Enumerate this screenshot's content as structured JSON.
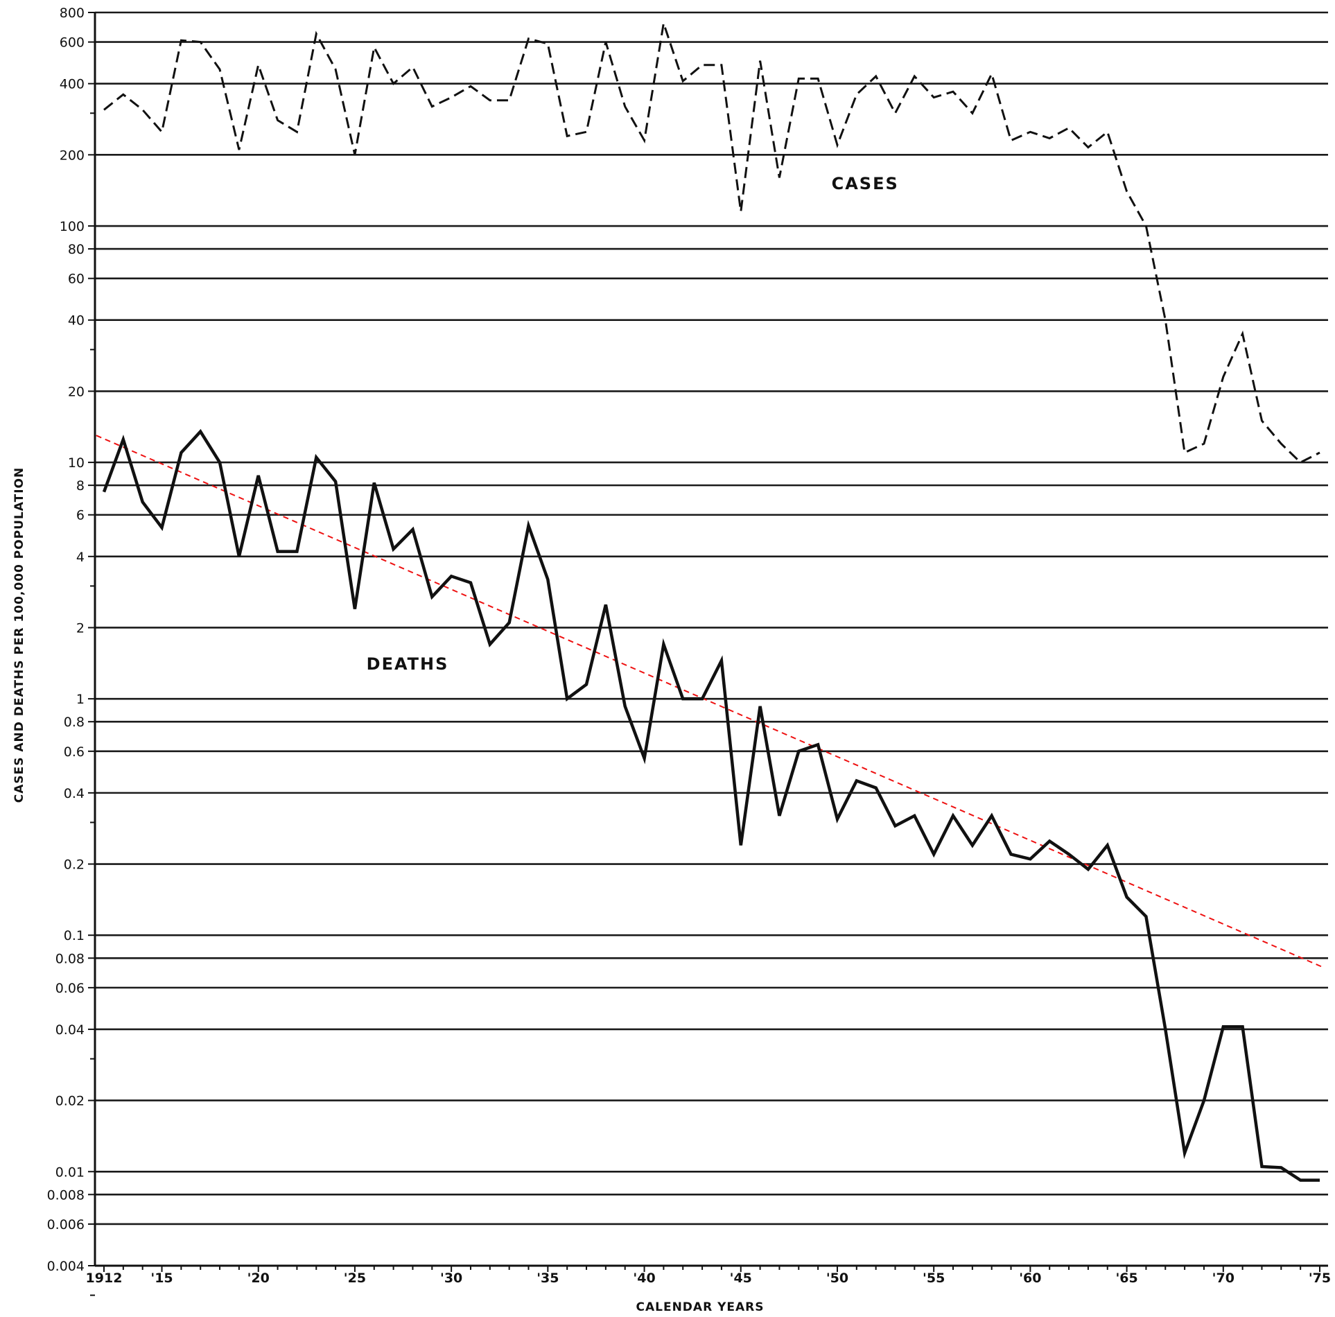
{
  "chart_data": {
    "type": "line",
    "yscale": "log",
    "ylim": [
      0.004,
      800
    ],
    "xlim": [
      1911.6,
      1975.2
    ],
    "ylabel": "CASES AND DEATHS PER 100,000 POPULATION",
    "xlabel": "CALENDAR YEARS",
    "y_ticks": [
      {
        "value": 800,
        "label": "800"
      },
      {
        "value": 600,
        "label": "600"
      },
      {
        "value": 400,
        "label": "400"
      },
      {
        "value": 200,
        "label": "200"
      },
      {
        "value": 100,
        "label": "100"
      },
      {
        "value": 80,
        "label": "80"
      },
      {
        "value": 60,
        "label": "60"
      },
      {
        "value": 40,
        "label": "40"
      },
      {
        "value": 20,
        "label": "20"
      },
      {
        "value": 10,
        "label": "10"
      },
      {
        "value": 8,
        "label": "8"
      },
      {
        "value": 6,
        "label": "6"
      },
      {
        "value": 4,
        "label": "4"
      },
      {
        "value": 2,
        "label": "2"
      },
      {
        "value": 1,
        "label": "1"
      },
      {
        "value": 0.8,
        "label": "0.8"
      },
      {
        "value": 0.6,
        "label": "0.6"
      },
      {
        "value": 0.4,
        "label": "0.4"
      },
      {
        "value": 0.2,
        "label": "0.2"
      },
      {
        "value": 0.1,
        "label": "0.1"
      },
      {
        "value": 0.08,
        "label": "0.08"
      },
      {
        "value": 0.06,
        "label": "0.06"
      },
      {
        "value": 0.04,
        "label": "0.04"
      },
      {
        "value": 0.02,
        "label": "0.02"
      },
      {
        "value": 0.01,
        "label": "0.01"
      },
      {
        "value": 0.008,
        "label": "0.008"
      },
      {
        "value": 0.006,
        "label": "0.006"
      },
      {
        "value": 0.004,
        "label": "0.004"
      }
    ],
    "minor_y_ticks": [
      300,
      30,
      3,
      0.3,
      0.03,
      0.003
    ],
    "x_ticks": [
      {
        "value": 1912,
        "label": "1912"
      },
      {
        "value": 1915,
        "label": "'15"
      },
      {
        "value": 1920,
        "label": "'20"
      },
      {
        "value": 1925,
        "label": "'25"
      },
      {
        "value": 1930,
        "label": "'30"
      },
      {
        "value": 1935,
        "label": "'35"
      },
      {
        "value": 1940,
        "label": "'40"
      },
      {
        "value": 1945,
        "label": "'45"
      },
      {
        "value": 1950,
        "label": "'50"
      },
      {
        "value": 1955,
        "label": "'55"
      },
      {
        "value": 1960,
        "label": "'60"
      },
      {
        "value": 1965,
        "label": "'65"
      },
      {
        "value": 1970,
        "label": "'70"
      },
      {
        "value": 1975,
        "label": "'75"
      }
    ],
    "series": [
      {
        "name": "CASES",
        "style": "dashed",
        "x": [
          1912,
          1913,
          1914,
          1915,
          1916,
          1917,
          1918,
          1919,
          1920,
          1921,
          1922,
          1923,
          1924,
          1925,
          1926,
          1927,
          1928,
          1929,
          1930,
          1931,
          1932,
          1933,
          1934,
          1935,
          1936,
          1937,
          1938,
          1939,
          1940,
          1941,
          1942,
          1943,
          1944,
          1945,
          1946,
          1947,
          1948,
          1949,
          1950,
          1951,
          1952,
          1953,
          1954,
          1955,
          1956,
          1957,
          1958,
          1959,
          1960,
          1961,
          1962,
          1963,
          1964,
          1965,
          1966,
          1967,
          1968,
          1969,
          1970,
          1971,
          1972,
          1973,
          1974,
          1975
        ],
        "values": [
          310,
          360,
          310,
          250,
          610,
          600,
          460,
          210,
          480,
          280,
          250,
          650,
          460,
          200,
          570,
          400,
          470,
          320,
          350,
          390,
          340,
          340,
          620,
          590,
          240,
          250,
          600,
          320,
          230,
          720,
          410,
          480,
          480,
          115,
          500,
          160,
          420,
          420,
          220,
          360,
          430,
          300,
          430,
          350,
          370,
          300,
          440,
          230,
          250,
          235,
          260,
          215,
          250,
          140,
          100,
          40,
          11,
          12,
          23,
          35,
          15,
          12,
          10,
          11
        ],
        "color": "#111111"
      },
      {
        "name": "DEATHS",
        "style": "solid",
        "x": [
          1912,
          1913,
          1914,
          1915,
          1916,
          1917,
          1918,
          1919,
          1920,
          1921,
          1922,
          1923,
          1924,
          1925,
          1926,
          1927,
          1928,
          1929,
          1930,
          1931,
          1932,
          1933,
          1934,
          1935,
          1936,
          1937,
          1938,
          1939,
          1940,
          1941,
          1942,
          1943,
          1944,
          1945,
          1946,
          1947,
          1948,
          1949,
          1950,
          1951,
          1952,
          1953,
          1954,
          1955,
          1956,
          1957,
          1958,
          1959,
          1960,
          1961,
          1962,
          1963,
          1964,
          1965,
          1966,
          1967,
          1968,
          1969,
          1970,
          1971,
          1972,
          1973,
          1974,
          1975
        ],
        "values": [
          7.5,
          12.5,
          6.8,
          5.3,
          11,
          13.5,
          10,
          4,
          8.8,
          4.2,
          4.2,
          10.5,
          8.3,
          2.4,
          8.2,
          4.3,
          5.2,
          2.7,
          3.3,
          3.1,
          1.7,
          2.1,
          5.4,
          3.2,
          1.0,
          1.15,
          2.5,
          0.93,
          0.56,
          1.7,
          1.0,
          1.0,
          1.45,
          0.24,
          0.93,
          0.32,
          0.6,
          0.64,
          0.31,
          0.45,
          0.42,
          0.29,
          0.32,
          0.22,
          0.32,
          0.24,
          0.32,
          0.22,
          0.21,
          0.25,
          0.22,
          0.19,
          0.24,
          0.145,
          0.12,
          0.04,
          0.012,
          0.02,
          0.041,
          0.041,
          0.0105,
          0.0104,
          0.0092,
          0.0092
        ],
        "color": "#111111"
      }
    ],
    "trend_line": {
      "style": "dashed",
      "color": "#e11111",
      "x": [
        1911.6,
        1975.2
      ],
      "values": [
        13.0,
        0.073
      ]
    },
    "annotations": [
      {
        "text": "CASES",
        "x": 1949.7,
        "y": 143
      },
      {
        "text": "DEATHS",
        "x": 1925.6,
        "y": 1.33
      }
    ]
  }
}
